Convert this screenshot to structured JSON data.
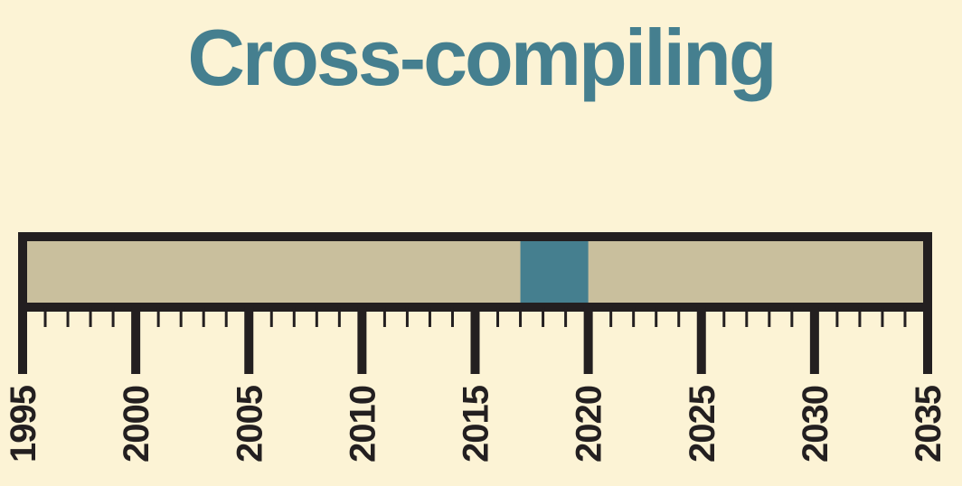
{
  "title": "Cross-compiling",
  "colors": {
    "background": "#fcf3d5",
    "title": "#457f8f",
    "bar_fill": "#c9bf9d",
    "highlight": "#457f8f",
    "ink": "#231f20"
  },
  "timeline": {
    "start_year": 1995,
    "end_year": 2035,
    "major_step": 5,
    "minor_step": 1,
    "labels": [
      "1995",
      "2000",
      "2005",
      "2010",
      "2015",
      "2020",
      "2025",
      "2030",
      "2035"
    ],
    "highlight_range": [
      2017,
      2020
    ]
  }
}
